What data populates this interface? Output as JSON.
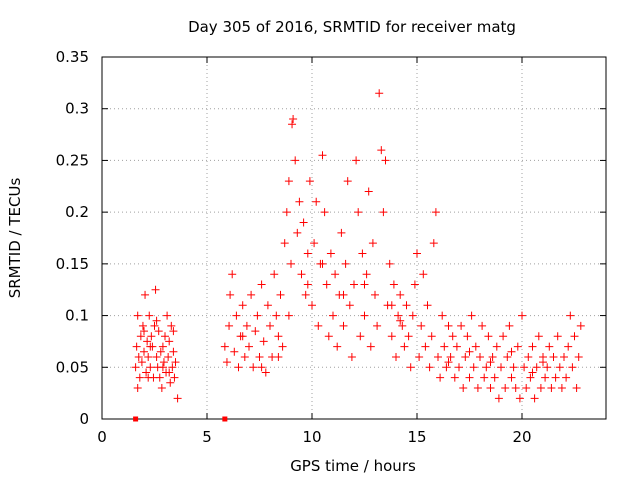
{
  "chart_data": {
    "type": "scatter",
    "title": "Day 305 of 2016, SRMTID for receiver matg",
    "xlabel": "GPS time / hours",
    "ylabel": "SRMTID / TECUs",
    "xlim": [
      0,
      24
    ],
    "ylim": [
      0,
      0.35
    ],
    "x_ticks": [
      0,
      5,
      10,
      15,
      20
    ],
    "x_tick_labels": [
      "0",
      "5",
      "10",
      "15",
      "20"
    ],
    "y_ticks": [
      0,
      0.05,
      0.1,
      0.15,
      0.2,
      0.25,
      0.3,
      0.35
    ],
    "y_tick_labels": [
      "0",
      "0.05",
      "0.1",
      "0.15",
      "0.2",
      "0.25",
      "0.3",
      "0.35"
    ],
    "grid": true,
    "marker": "+",
    "color": "#ff0000",
    "zero_markers": [
      1.6,
      5.85
    ],
    "series": [
      {
        "name": "SRMTID",
        "points": [
          [
            1.6,
            0.05
          ],
          [
            1.65,
            0.07
          ],
          [
            1.7,
            0.1
          ],
          [
            1.75,
            0.06
          ],
          [
            1.8,
            0.04
          ],
          [
            1.85,
            0.08
          ],
          [
            1.9,
            0.055
          ],
          [
            1.95,
            0.09
          ],
          [
            2.0,
            0.065
          ],
          [
            2.05,
            0.12
          ],
          [
            2.1,
            0.045
          ],
          [
            2.15,
            0.075
          ],
          [
            2.2,
            0.06
          ],
          [
            2.25,
            0.1
          ],
          [
            2.3,
            0.05
          ],
          [
            2.35,
            0.08
          ],
          [
            2.4,
            0.07
          ],
          [
            2.45,
            0.04
          ],
          [
            2.5,
            0.09
          ],
          [
            2.55,
            0.125
          ],
          [
            2.6,
            0.06
          ],
          [
            2.65,
            0.05
          ],
          [
            2.7,
            0.085
          ],
          [
            2.75,
            0.04
          ],
          [
            2.8,
            0.065
          ],
          [
            2.85,
            0.03
          ],
          [
            2.9,
            0.07
          ],
          [
            2.95,
            0.055
          ],
          [
            3.0,
            0.08
          ],
          [
            3.05,
            0.045
          ],
          [
            3.1,
            0.1
          ],
          [
            3.15,
            0.06
          ],
          [
            3.2,
            0.075
          ],
          [
            3.25,
            0.035
          ],
          [
            3.3,
            0.09
          ],
          [
            3.35,
            0.05
          ],
          [
            3.4,
            0.065
          ],
          [
            3.45,
            0.04
          ],
          [
            3.5,
            0.055
          ],
          [
            3.6,
            0.02
          ],
          [
            1.7,
            0.03
          ],
          [
            2.0,
            0.085
          ],
          [
            2.3,
            0.07
          ],
          [
            2.6,
            0.095
          ],
          [
            2.9,
            0.05
          ],
          [
            3.2,
            0.045
          ],
          [
            3.4,
            0.085
          ],
          [
            2.2,
            0.04
          ],
          [
            5.85,
            0.07
          ],
          [
            5.95,
            0.055
          ],
          [
            6.05,
            0.09
          ],
          [
            6.1,
            0.12
          ],
          [
            6.2,
            0.14
          ],
          [
            6.3,
            0.065
          ],
          [
            6.4,
            0.1
          ],
          [
            6.5,
            0.05
          ],
          [
            6.6,
            0.08
          ],
          [
            6.7,
            0.11
          ],
          [
            6.8,
            0.06
          ],
          [
            6.9,
            0.09
          ],
          [
            7.0,
            0.07
          ],
          [
            7.1,
            0.12
          ],
          [
            7.2,
            0.05
          ],
          [
            7.3,
            0.085
          ],
          [
            7.4,
            0.1
          ],
          [
            7.5,
            0.06
          ],
          [
            7.6,
            0.13
          ],
          [
            7.7,
            0.075
          ],
          [
            7.8,
            0.045
          ],
          [
            7.9,
            0.11
          ],
          [
            8.0,
            0.09
          ],
          [
            8.1,
            0.06
          ],
          [
            8.2,
            0.14
          ],
          [
            8.3,
            0.1
          ],
          [
            8.4,
            0.08
          ],
          [
            8.5,
            0.12
          ],
          [
            8.6,
            0.07
          ],
          [
            8.7,
            0.17
          ],
          [
            8.8,
            0.2
          ],
          [
            8.9,
            0.23
          ],
          [
            9.0,
            0.15
          ],
          [
            9.05,
            0.285
          ],
          [
            9.1,
            0.29
          ],
          [
            9.2,
            0.25
          ],
          [
            9.3,
            0.18
          ],
          [
            9.4,
            0.21
          ],
          [
            9.5,
            0.14
          ],
          [
            9.6,
            0.19
          ],
          [
            9.7,
            0.12
          ],
          [
            9.8,
            0.16
          ],
          [
            9.9,
            0.23
          ],
          [
            10.0,
            0.11
          ],
          [
            10.1,
            0.17
          ],
          [
            10.2,
            0.21
          ],
          [
            10.3,
            0.09
          ],
          [
            10.4,
            0.15
          ],
          [
            10.5,
            0.255
          ],
          [
            10.6,
            0.2
          ],
          [
            10.7,
            0.13
          ],
          [
            10.8,
            0.08
          ],
          [
            10.9,
            0.16
          ],
          [
            11.0,
            0.1
          ],
          [
            11.1,
            0.14
          ],
          [
            11.2,
            0.07
          ],
          [
            11.3,
            0.12
          ],
          [
            11.4,
            0.18
          ],
          [
            11.5,
            0.09
          ],
          [
            11.6,
            0.15
          ],
          [
            11.7,
            0.23
          ],
          [
            11.8,
            0.11
          ],
          [
            11.9,
            0.06
          ],
          [
            12.0,
            0.13
          ],
          [
            12.1,
            0.25
          ],
          [
            12.2,
            0.2
          ],
          [
            12.3,
            0.08
          ],
          [
            12.4,
            0.16
          ],
          [
            12.5,
            0.1
          ],
          [
            12.6,
            0.14
          ],
          [
            12.7,
            0.22
          ],
          [
            12.8,
            0.07
          ],
          [
            12.9,
            0.17
          ],
          [
            13.0,
            0.12
          ],
          [
            13.1,
            0.09
          ],
          [
            13.2,
            0.315
          ],
          [
            13.3,
            0.26
          ],
          [
            13.4,
            0.2
          ],
          [
            13.5,
            0.25
          ],
          [
            13.6,
            0.11
          ],
          [
            13.7,
            0.15
          ],
          [
            13.8,
            0.08
          ],
          [
            13.9,
            0.13
          ],
          [
            14.0,
            0.06
          ],
          [
            14.1,
            0.1
          ],
          [
            14.2,
            0.12
          ],
          [
            14.3,
            0.09
          ],
          [
            14.4,
            0.07
          ],
          [
            14.5,
            0.11
          ],
          [
            14.6,
            0.08
          ],
          [
            14.7,
            0.05
          ],
          [
            14.8,
            0.1
          ],
          [
            14.9,
            0.13
          ],
          [
            15.0,
            0.16
          ],
          [
            15.1,
            0.06
          ],
          [
            15.2,
            0.09
          ],
          [
            15.3,
            0.14
          ],
          [
            15.4,
            0.07
          ],
          [
            15.5,
            0.11
          ],
          [
            15.6,
            0.05
          ],
          [
            15.7,
            0.08
          ],
          [
            15.8,
            0.17
          ],
          [
            15.9,
            0.2
          ],
          [
            16.0,
            0.06
          ],
          [
            16.1,
            0.04
          ],
          [
            16.2,
            0.1
          ],
          [
            16.3,
            0.07
          ],
          [
            16.4,
            0.05
          ],
          [
            16.5,
            0.09
          ],
          [
            16.6,
            0.06
          ],
          [
            16.7,
            0.08
          ],
          [
            16.8,
            0.04
          ],
          [
            16.9,
            0.07
          ],
          [
            17.0,
            0.05
          ],
          [
            17.1,
            0.09
          ],
          [
            17.2,
            0.03
          ],
          [
            17.3,
            0.06
          ],
          [
            17.4,
            0.08
          ],
          [
            17.5,
            0.04
          ],
          [
            17.6,
            0.1
          ],
          [
            17.7,
            0.05
          ],
          [
            17.8,
            0.07
          ],
          [
            17.9,
            0.03
          ],
          [
            18.0,
            0.06
          ],
          [
            18.1,
            0.09
          ],
          [
            18.2,
            0.04
          ],
          [
            18.3,
            0.05
          ],
          [
            18.4,
            0.08
          ],
          [
            18.5,
            0.03
          ],
          [
            18.6,
            0.06
          ],
          [
            18.7,
            0.04
          ],
          [
            18.8,
            0.07
          ],
          [
            18.9,
            0.02
          ],
          [
            19.0,
            0.05
          ],
          [
            19.1,
            0.08
          ],
          [
            19.2,
            0.03
          ],
          [
            19.3,
            0.06
          ],
          [
            19.4,
            0.09
          ],
          [
            19.5,
            0.04
          ],
          [
            19.6,
            0.05
          ],
          [
            19.7,
            0.03
          ],
          [
            19.8,
            0.07
          ],
          [
            19.9,
            0.02
          ],
          [
            20.0,
            0.1
          ],
          [
            20.1,
            0.05
          ],
          [
            20.2,
            0.03
          ],
          [
            20.3,
            0.06
          ],
          [
            20.4,
            0.04
          ],
          [
            20.5,
            0.07
          ],
          [
            20.6,
            0.02
          ],
          [
            20.7,
            0.05
          ],
          [
            20.8,
            0.08
          ],
          [
            20.9,
            0.03
          ],
          [
            21.0,
            0.06
          ],
          [
            21.1,
            0.04
          ],
          [
            21.2,
            0.05
          ],
          [
            21.3,
            0.07
          ],
          [
            21.4,
            0.03
          ],
          [
            21.5,
            0.06
          ],
          [
            21.6,
            0.04
          ],
          [
            21.7,
            0.08
          ],
          [
            21.8,
            0.05
          ],
          [
            21.9,
            0.03
          ],
          [
            22.0,
            0.06
          ],
          [
            22.1,
            0.04
          ],
          [
            22.2,
            0.07
          ],
          [
            22.3,
            0.1
          ],
          [
            22.4,
            0.05
          ],
          [
            22.5,
            0.08
          ],
          [
            22.6,
            0.03
          ],
          [
            22.7,
            0.06
          ],
          [
            22.8,
            0.09
          ],
          [
            21.0,
            0.055
          ],
          [
            20.5,
            0.045
          ],
          [
            19.5,
            0.065
          ],
          [
            18.5,
            0.055
          ],
          [
            17.5,
            0.065
          ],
          [
            16.5,
            0.055
          ],
          [
            14.2,
            0.095
          ],
          [
            13.8,
            0.11
          ],
          [
            12.5,
            0.13
          ],
          [
            11.5,
            0.12
          ],
          [
            10.5,
            0.15
          ],
          [
            9.8,
            0.13
          ],
          [
            8.9,
            0.1
          ],
          [
            8.4,
            0.06
          ],
          [
            7.6,
            0.05
          ],
          [
            6.7,
            0.08
          ]
        ]
      }
    ]
  }
}
